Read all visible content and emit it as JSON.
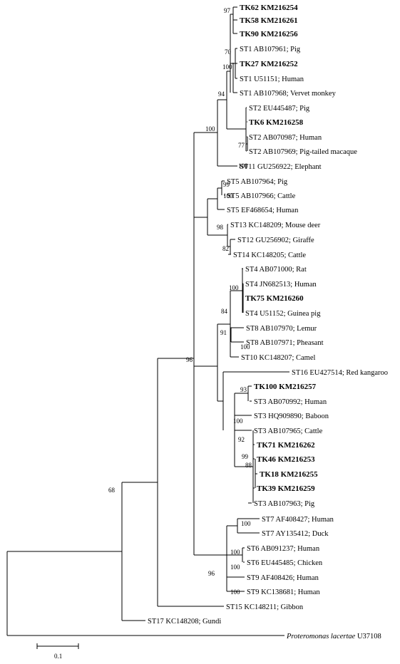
{
  "taxa": [
    {
      "name": "TK62 KM216254",
      "bold": true
    },
    {
      "name": "TK58 KM216261",
      "bold": true
    },
    {
      "name": "TK90 KM216256",
      "bold": true
    },
    {
      "name": "ST1 AB107961; Pig"
    },
    {
      "name": "TK27 KM216252",
      "bold": true
    },
    {
      "name": "ST1 U51151; Human"
    },
    {
      "name": "ST1 AB107968; Vervet monkey"
    },
    {
      "name": "ST2 EU445487; Pig"
    },
    {
      "name": "TK6 KM216258",
      "bold": true
    },
    {
      "name": "ST2 AB070987; Human"
    },
    {
      "name": "ST2 AB107969; Pig-tailed macaque"
    },
    {
      "name": "ST11 GU256922; Elephant"
    },
    {
      "name": "ST5 AB107964; Pig"
    },
    {
      "name": "ST5 AB107966; Cattle"
    },
    {
      "name": "ST5 EF468654; Human"
    },
    {
      "name": "ST13 KC148209; Mouse deer"
    },
    {
      "name": "ST12 GU256902; Giraffe"
    },
    {
      "name": "ST14 KC148205; Cattle"
    },
    {
      "name": "ST4 AB071000; Rat"
    },
    {
      "name": "ST4 JN682513; Human"
    },
    {
      "name": "TK75 KM216260",
      "bold": true
    },
    {
      "name": "ST4 U51152; Guinea pig"
    },
    {
      "name": "ST8 AB107970; Lemur"
    },
    {
      "name": "ST8 AB107971; Pheasant"
    },
    {
      "name": "ST10 KC148207; Camel"
    },
    {
      "name": "ST16 EU427514; Red kangaroo"
    },
    {
      "name": "TK100 KM216257",
      "bold": true
    },
    {
      "name": "ST3 AB070992; Human"
    },
    {
      "name": "ST3 HQ909890; Baboon"
    },
    {
      "name": "ST3 AB107965; Cattle"
    },
    {
      "name": "TK71 KM216262",
      "bold": true
    },
    {
      "name": "TK46 KM216253",
      "bold": true
    },
    {
      "name": "TK18 KM216255",
      "bold": true
    },
    {
      "name": "TK39 KM216259",
      "bold": true
    },
    {
      "name": "ST3 AB107963; Pig"
    },
    {
      "name": "ST7 AF408427; Human"
    },
    {
      "name": "ST7 AY135412; Duck"
    },
    {
      "name": "ST6 AB091237; Human"
    },
    {
      "name": "ST6 EU445485; Chicken"
    },
    {
      "name": "ST9 AF408426; Human"
    },
    {
      "name": "ST9 KC138681; Human"
    },
    {
      "name": "ST15 KC148211; Gibbon"
    },
    {
      "name": "ST17 KC148208; Gundi"
    },
    {
      "name": "Proteromonas lacertae",
      "suffix": " U37108",
      "italic": true
    }
  ],
  "bootstrap": [
    "97",
    "70",
    "100",
    "94",
    "100",
    "77",
    "100",
    "99",
    "100",
    "98",
    "82",
    "100",
    "84",
    "100",
    "91",
    "96",
    "93",
    "100",
    "92",
    "99",
    "88",
    "100",
    "100",
    "96",
    "100",
    "100",
    "68"
  ],
  "scale_bar": {
    "label": "0.1"
  }
}
